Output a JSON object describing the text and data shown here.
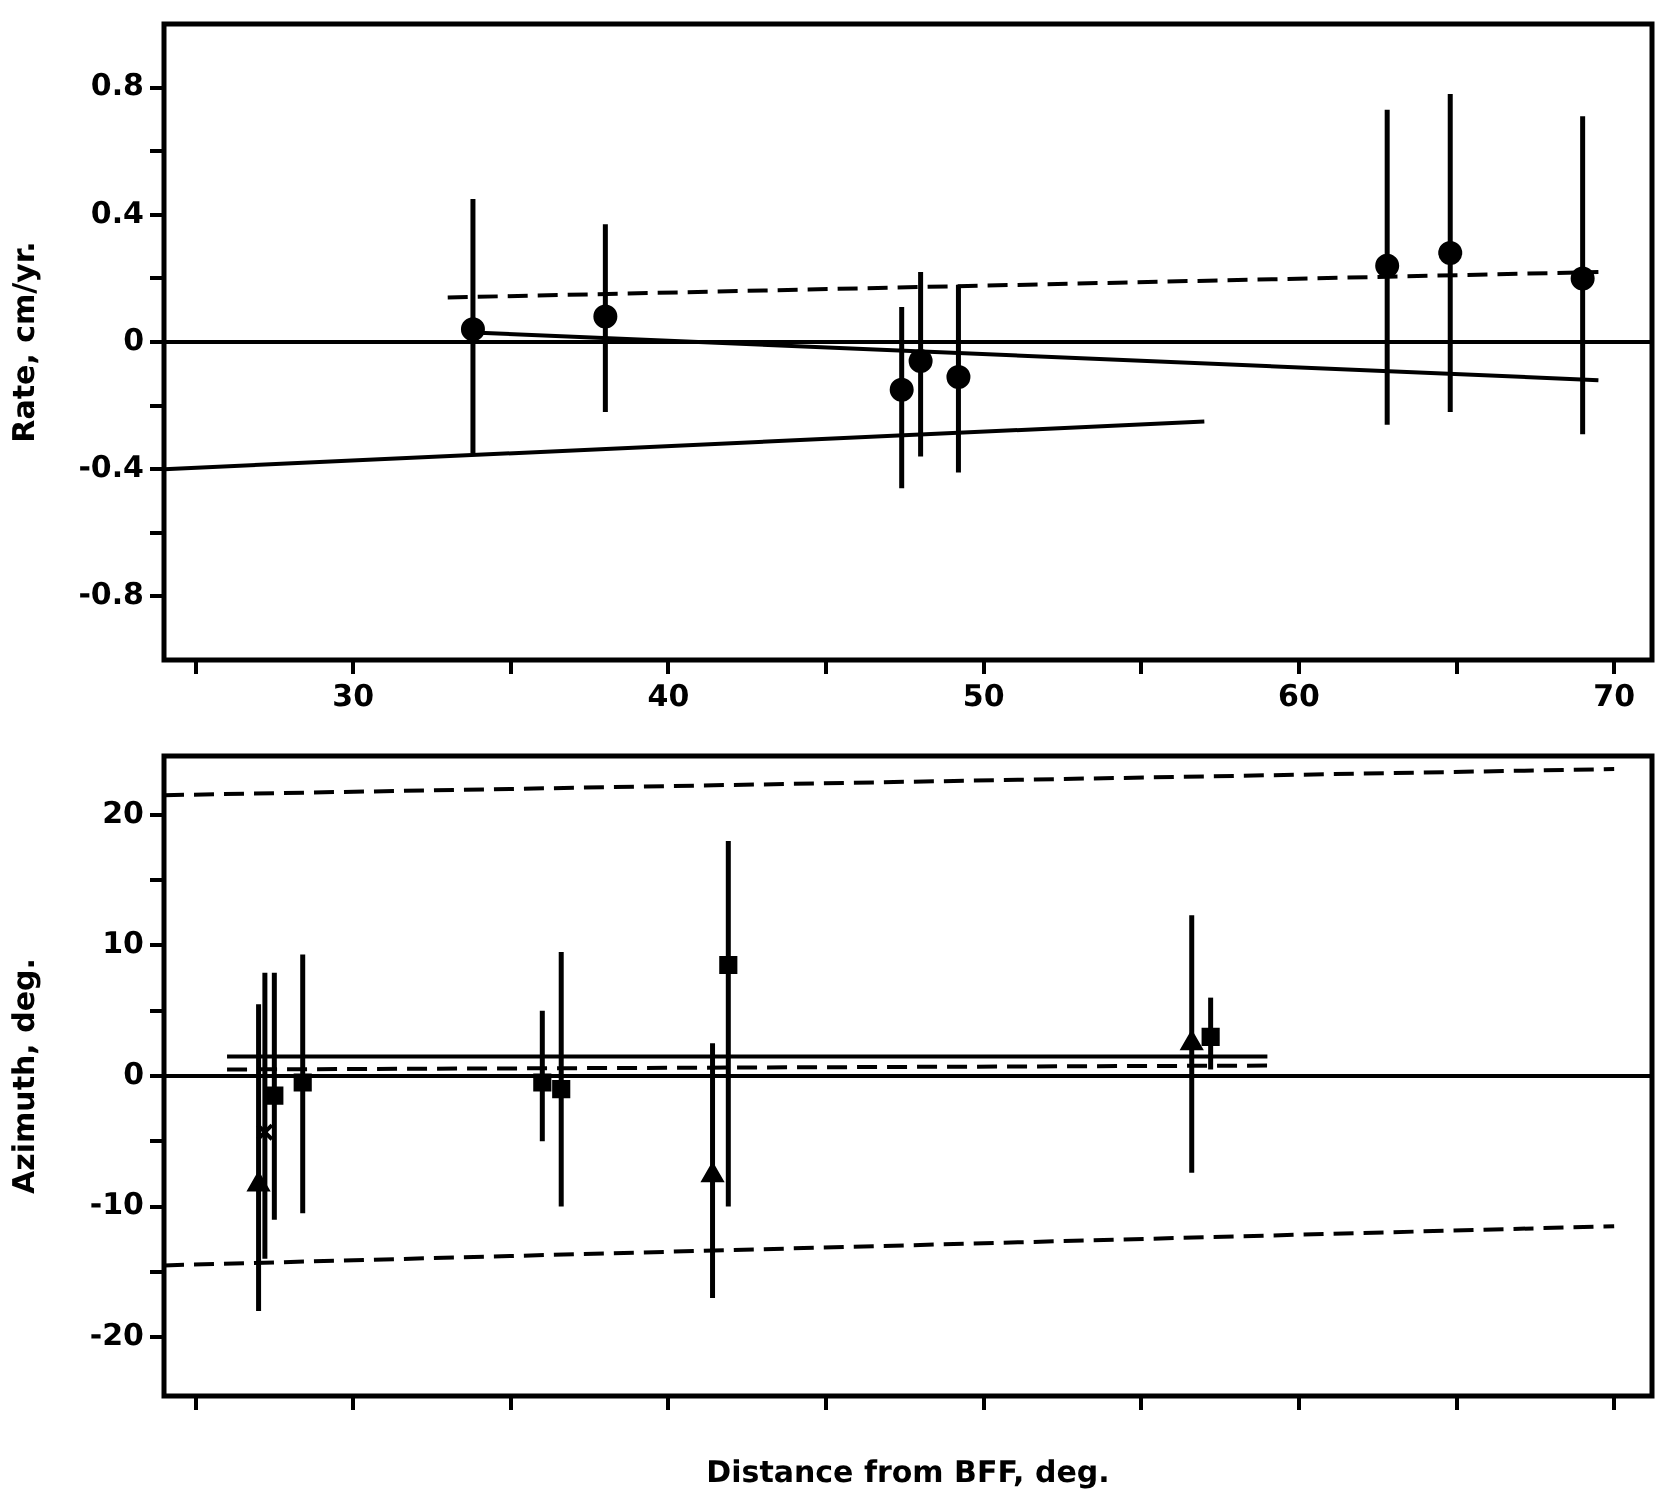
{
  "chart_data": [
    {
      "type": "scatter",
      "ylabel": "Rate, cm/yr.",
      "xlim": [
        24,
        71.2
      ],
      "ylim": [
        -1,
        1
      ],
      "xticks": [
        {
          "value": 25,
          "label": null
        },
        30,
        {
          "value": 35,
          "label": null
        },
        40,
        {
          "value": 45,
          "label": null
        },
        50,
        {
          "value": 55,
          "label": null
        },
        60,
        {
          "value": 65,
          "label": null
        },
        70
      ],
      "yticks": [
        -0.8,
        {
          "value": -0.6,
          "label": null
        },
        -0.4,
        {
          "value": -0.2,
          "label": null
        },
        0,
        {
          "value": 0.2,
          "label": null
        },
        0.4,
        {
          "value": 0.6,
          "label": null
        },
        0.8
      ],
      "grid": false,
      "legend": false,
      "ref_lines": [
        {
          "axis": "y",
          "value": 0,
          "color": "#000000",
          "line_style": "solid"
        }
      ],
      "series": [
        {
          "type": "scatter",
          "marker": "circle",
          "color": "#000000",
          "x": [
            33.8,
            38.0,
            47.4,
            48.0,
            49.2,
            62.8,
            64.8,
            69.0
          ],
          "values": [
            0.04,
            0.08,
            -0.15,
            -0.06,
            -0.11,
            0.24,
            0.28,
            0.2
          ],
          "errors": [
            [
              -0.35,
              0.45
            ],
            [
              -0.22,
              0.37
            ],
            [
              -0.46,
              0.11
            ],
            [
              -0.36,
              0.22
            ],
            [
              -0.41,
              0.18
            ],
            [
              -0.26,
              0.73
            ],
            [
              -0.22,
              0.78
            ],
            [
              -0.29,
              0.71
            ]
          ]
        },
        {
          "type": "line",
          "marker": "none",
          "line_style": "dashed",
          "color": "#000000",
          "x": [
            33,
            69.5
          ],
          "values": [
            0.14,
            0.22
          ]
        },
        {
          "type": "line",
          "marker": "none",
          "line_style": "solid",
          "color": "#000000",
          "x": [
            33.8,
            69.5
          ],
          "values": [
            0.03,
            -0.12
          ]
        },
        {
          "type": "line",
          "marker": "none",
          "line_style": "solid",
          "color": "#000000",
          "x": [
            24,
            57
          ],
          "values": [
            -0.4,
            -0.25
          ]
        }
      ]
    },
    {
      "type": "scatter",
      "ylabel": "Azimuth, deg.",
      "xlabel": "Distance from BFF, deg.",
      "xlim": [
        24,
        71.2
      ],
      "ylim": [
        -24.5,
        24.5
      ],
      "xticks": [
        {
          "value": 25,
          "label": null
        },
        {
          "value": 30,
          "label": null
        },
        {
          "value": 35,
          "label": null
        },
        {
          "value": 40,
          "label": null
        },
        {
          "value": 45,
          "label": null
        },
        {
          "value": 50,
          "label": null
        },
        {
          "value": 55,
          "label": null
        },
        {
          "value": 60,
          "label": null
        },
        {
          "value": 65,
          "label": null
        },
        {
          "value": 70,
          "label": null
        }
      ],
      "yticks": [
        -20,
        {
          "value": -15,
          "label": null
        },
        -10,
        {
          "value": -5,
          "label": null
        },
        0,
        {
          "value": 5,
          "label": null
        },
        10,
        {
          "value": 15,
          "label": null
        },
        20
      ],
      "tick_labels": "y",
      "grid": false,
      "legend": false,
      "ref_lines": [
        {
          "axis": "y",
          "value": 0,
          "color": "#000000",
          "line_style": "solid"
        }
      ],
      "series": [
        {
          "type": "scatter",
          "marker": "triangle",
          "color": "#000000",
          "x": [
            27.0,
            41.4,
            56.6
          ],
          "values": [
            -8.3,
            -7.6,
            2.5
          ],
          "errors": [
            [
              -18,
              5.5
            ],
            [
              -17,
              2.5
            ],
            [
              -7.4,
              12.3
            ]
          ]
        },
        {
          "type": "scatter",
          "marker": "cross",
          "color": "#000000",
          "x": [
            27.2
          ],
          "values": [
            -4.3
          ],
          "errors": [
            [
              -14,
              7.9
            ]
          ]
        },
        {
          "type": "scatter",
          "marker": "square",
          "color": "#000000",
          "x": [
            27.5,
            28.4,
            36.0,
            36.6,
            41.9,
            57.2
          ],
          "values": [
            -1.5,
            -0.5,
            -0.5,
            -1,
            8.5,
            3
          ],
          "errors": [
            [
              -11,
              7.9
            ],
            [
              -10.5,
              9.3
            ],
            [
              -5,
              5
            ],
            [
              -10,
              9.5
            ],
            [
              -10,
              18
            ],
            [
              0.5,
              6
            ]
          ]
        },
        {
          "type": "line",
          "marker": "none",
          "line_style": "solid",
          "color": "#000000",
          "x": [
            26,
            59
          ],
          "values": [
            1.5,
            1.5
          ]
        },
        {
          "type": "line",
          "marker": "none",
          "line_style": "dashed",
          "color": "#000000",
          "x": [
            26,
            59
          ],
          "values": [
            0.5,
            0.8
          ]
        },
        {
          "type": "line",
          "marker": "none",
          "line_style": "dashed",
          "color": "#000000",
          "x": [
            24,
            70
          ],
          "values": [
            -14.5,
            -11.5
          ]
        },
        {
          "type": "line",
          "marker": "none",
          "line_style": "dashed",
          "color": "#000000",
          "x": [
            24,
            70
          ],
          "values": [
            21.5,
            23.5
          ]
        }
      ]
    }
  ]
}
